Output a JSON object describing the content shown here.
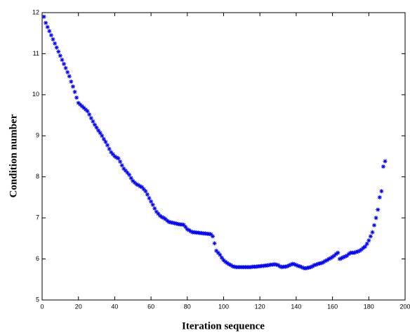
{
  "chart_data": {
    "type": "scatter",
    "x_label": "Iteration sequence",
    "y_label": "Condition number",
    "xlim": [
      0,
      200
    ],
    "xticks": [
      0,
      20,
      40,
      60,
      80,
      100,
      120,
      140,
      160,
      180,
      200
    ],
    "ylim": [
      5,
      12
    ],
    "yticks": [
      5,
      6,
      7,
      8,
      9,
      10,
      11,
      12
    ],
    "grid": false,
    "series": [
      {
        "color": "#0000ff",
        "x": [
          1,
          2,
          3,
          4,
          5,
          6,
          7,
          8,
          9,
          10,
          11,
          12,
          13,
          14,
          15,
          16,
          17,
          18,
          19,
          20,
          21,
          22,
          23,
          24,
          25,
          26,
          27,
          28,
          29,
          30,
          31,
          32,
          33,
          34,
          35,
          36,
          37,
          38,
          39,
          40,
          41,
          42,
          43,
          44,
          45,
          46,
          47,
          48,
          49,
          50,
          51,
          52,
          53,
          54,
          55,
          56,
          57,
          58,
          59,
          60,
          61,
          62,
          63,
          64,
          65,
          66,
          67,
          68,
          69,
          70,
          71,
          72,
          73,
          74,
          75,
          76,
          77,
          78,
          79,
          80,
          81,
          82,
          83,
          84,
          85,
          86,
          87,
          88,
          89,
          90,
          91,
          92,
          93,
          94,
          95,
          96,
          97,
          98,
          99,
          100,
          101,
          102,
          103,
          104,
          105,
          106,
          107,
          108,
          109,
          110,
          111,
          112,
          113,
          114,
          115,
          116,
          117,
          118,
          119,
          120,
          121,
          122,
          123,
          124,
          125,
          126,
          127,
          128,
          129,
          130,
          131,
          132,
          133,
          134,
          135,
          136,
          137,
          138,
          139,
          140,
          141,
          142,
          143,
          144,
          145,
          146,
          147,
          148,
          149,
          150,
          151,
          152,
          153,
          154,
          155,
          156,
          157,
          158,
          159,
          160,
          161,
          162,
          163,
          164,
          165,
          166,
          167,
          168,
          169,
          170,
          171,
          172,
          173,
          174,
          175,
          176,
          177,
          178,
          179,
          180,
          181,
          182,
          183,
          184,
          185,
          186,
          187,
          188,
          189
        ],
        "values": [
          11.9,
          11.75,
          11.65,
          11.55,
          11.45,
          11.35,
          11.25,
          11.15,
          11.05,
          10.95,
          10.85,
          10.75,
          10.65,
          10.55,
          10.45,
          10.32,
          10.2,
          10.07,
          9.93,
          9.8,
          9.76,
          9.72,
          9.68,
          9.64,
          9.6,
          9.52,
          9.43,
          9.35,
          9.27,
          9.2,
          9.13,
          9.07,
          9.0,
          8.92,
          8.85,
          8.77,
          8.68,
          8.6,
          8.55,
          8.5,
          8.47,
          8.45,
          8.37,
          8.28,
          8.2,
          8.15,
          8.1,
          8.05,
          7.97,
          7.9,
          7.86,
          7.82,
          7.8,
          7.77,
          7.75,
          7.7,
          7.65,
          7.57,
          7.48,
          7.4,
          7.32,
          7.23,
          7.15,
          7.1,
          7.05,
          7.02,
          7.0,
          6.97,
          6.93,
          6.9,
          6.89,
          6.88,
          6.87,
          6.86,
          6.85,
          6.84,
          6.84,
          6.83,
          6.78,
          6.72,
          6.7,
          6.67,
          6.65,
          6.65,
          6.64,
          6.64,
          6.63,
          6.63,
          6.62,
          6.62,
          6.61,
          6.61,
          6.6,
          6.55,
          6.38,
          6.2,
          6.15,
          6.1,
          6.03,
          5.97,
          5.93,
          5.9,
          5.87,
          5.85,
          5.82,
          5.81,
          5.8,
          5.8,
          5.8,
          5.8,
          5.8,
          5.8,
          5.8,
          5.8,
          5.8,
          5.81,
          5.81,
          5.81,
          5.82,
          5.82,
          5.83,
          5.83,
          5.84,
          5.84,
          5.85,
          5.86,
          5.86,
          5.87,
          5.86,
          5.85,
          5.82,
          5.8,
          5.81,
          5.81,
          5.82,
          5.84,
          5.86,
          5.88,
          5.87,
          5.85,
          5.83,
          5.82,
          5.8,
          5.78,
          5.77,
          5.78,
          5.79,
          5.8,
          5.82,
          5.85,
          5.86,
          5.88,
          5.89,
          5.9,
          5.92,
          5.95,
          5.97,
          6.0,
          6.02,
          6.05,
          6.08,
          6.12,
          6.15,
          6.0,
          6.02,
          6.04,
          6.06,
          6.08,
          6.12,
          6.15,
          6.15,
          6.15,
          6.17,
          6.18,
          6.2,
          6.23,
          6.27,
          6.3,
          6.37,
          6.45,
          6.55,
          6.65,
          6.82,
          7.0,
          7.2,
          7.5,
          7.65,
          8.25,
          8.38
        ]
      }
    ]
  }
}
